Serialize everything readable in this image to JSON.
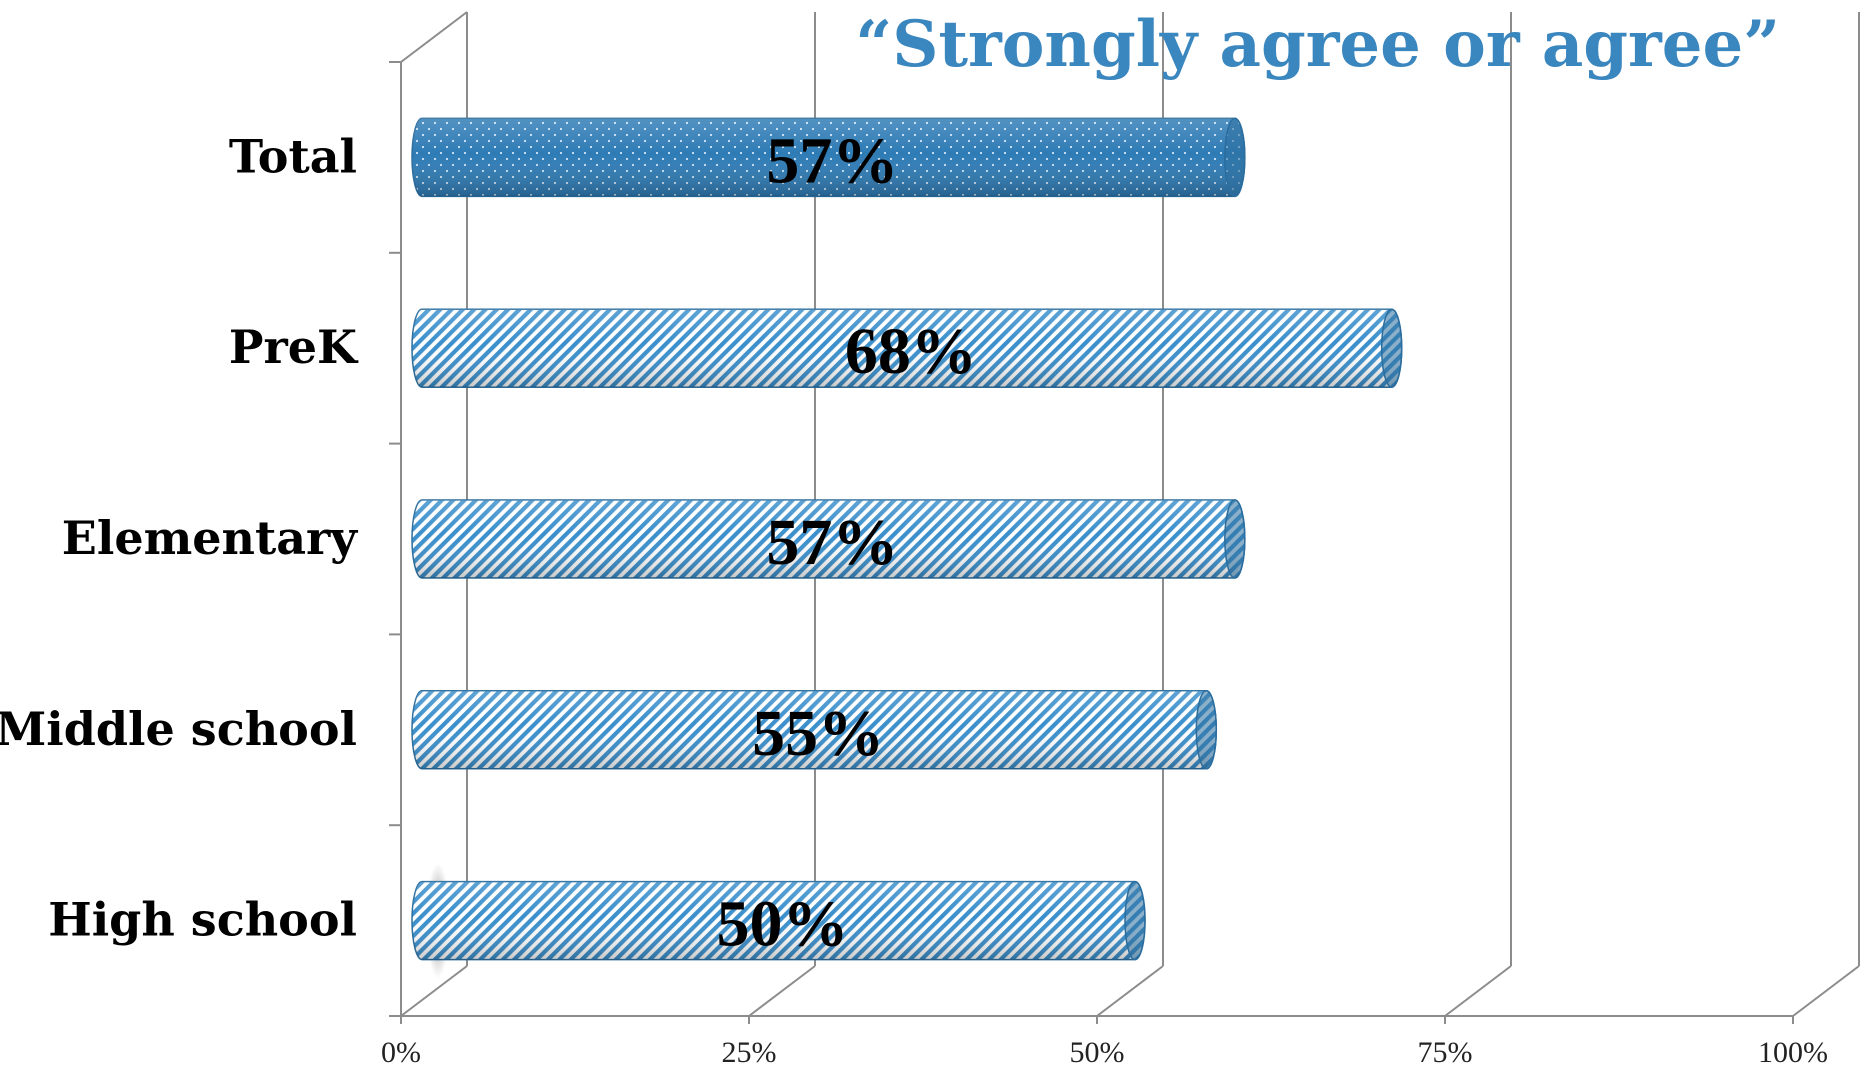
{
  "colors": {
    "bar_dark": "#2e7bb5",
    "bar_mid": "#3a8fcc",
    "bar_light": "#ffffff",
    "title": "#3a86be",
    "grid": "#8c8c8c"
  },
  "chart_data": {
    "type": "bar",
    "orientation": "horizontal",
    "title": "“Strongly agree or agree”",
    "categories": [
      "Total",
      "PreK",
      "Elementary",
      "Middle school",
      "High school"
    ],
    "values": [
      57,
      68,
      57,
      55,
      50
    ],
    "value_labels": [
      "57%",
      "68%",
      "57%",
      "55%",
      "50%"
    ],
    "x_ticks": [
      "0%",
      "25%",
      "50%",
      "75%",
      "100%"
    ],
    "xlim": [
      0,
      100
    ],
    "grid": true,
    "legend": "none",
    "style": "3d-cylinder"
  }
}
